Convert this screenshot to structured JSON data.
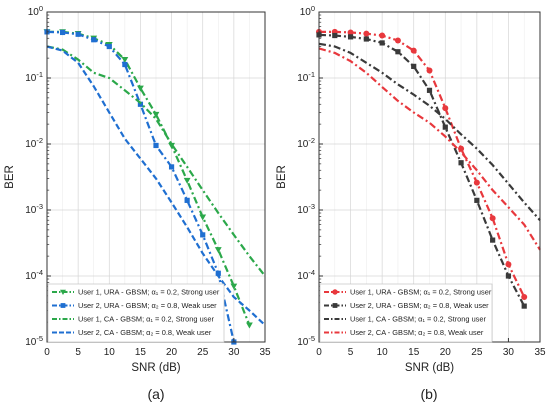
{
  "colors": {
    "green": "#2ba84a",
    "blue": "#1f6fd1",
    "red": "#e8383d",
    "dark": "#3a3a3a"
  },
  "chart_data": [
    {
      "type": "line",
      "panel_label": "(a)",
      "xlabel": "SNR (dB)",
      "ylabel": "BER",
      "x_scale": "linear",
      "y_scale": "log",
      "xlim": [
        0,
        35
      ],
      "ylim": [
        1e-05,
        1
      ],
      "x_ticks": [
        "0",
        "5",
        "10",
        "15",
        "20",
        "25",
        "30",
        "35"
      ],
      "y_ticks": [
        "10^-5",
        "10^-4",
        "10^-3",
        "10^-2",
        "10^-1",
        "10^0"
      ],
      "grid": true,
      "legend_position": "bottom-left",
      "series": [
        {
          "name": "User 1, URA - GBSM; α₁ = 0.2, Strong user",
          "color": "#2ba84a",
          "dash": "dashdot",
          "marker": "triangle-down",
          "x": [
            0,
            2.5,
            5,
            7.5,
            10,
            12.5,
            15,
            17.5,
            20,
            22.5,
            25,
            27.5,
            30,
            32.5,
            35
          ],
          "y": [
            0.5,
            0.5,
            0.47,
            0.4,
            0.32,
            0.19,
            0.07,
            0.028,
            0.0095,
            0.0028,
            0.00078,
            0.00025,
            7e-05,
            1.8e-05,
            null
          ]
        },
        {
          "name": "User 2, URA - GBSM; α₂ = 0.8, Weak user",
          "color": "#1f6fd1",
          "dash": "dashdot",
          "marker": "square",
          "x": [
            0,
            2.5,
            5,
            7.5,
            10,
            12.5,
            15,
            17.5,
            20,
            22.5,
            25,
            27.5,
            30,
            32.5
          ],
          "y": [
            0.5,
            0.49,
            0.46,
            0.38,
            0.3,
            0.16,
            0.04,
            0.0095,
            0.0045,
            0.0014,
            0.00042,
            0.00011,
            1e-05,
            null
          ]
        },
        {
          "name": "User 1, CA - GBSM; α₁ = 0.2, Strong user",
          "color": "#2ba84a",
          "dash": "dashdot",
          "marker": "none",
          "x": [
            0,
            2.5,
            5,
            7.5,
            10,
            12.5,
            15,
            17.5,
            20,
            22.5,
            25,
            27.5,
            30,
            32.5,
            35
          ],
          "y": [
            0.3,
            0.27,
            0.19,
            0.12,
            0.1,
            0.065,
            0.042,
            0.024,
            0.01,
            0.0045,
            0.002,
            0.0009,
            0.00042,
            0.0002,
            0.0001
          ]
        },
        {
          "name": "User 2, CA - GBSM; α₂ = 0.8, Weak user",
          "color": "#1f6fd1",
          "dash": "dash",
          "marker": "none",
          "x": [
            0,
            2.5,
            5,
            7.5,
            10,
            12.5,
            15,
            17.5,
            20,
            22.5,
            25,
            27.5,
            30,
            32.5,
            35
          ],
          "y": [
            0.3,
            0.26,
            0.17,
            0.075,
            0.03,
            0.012,
            0.006,
            0.003,
            0.0013,
            0.00055,
            0.00022,
            0.0001,
            4.8e-05,
            3e-05,
            1.8e-05
          ]
        }
      ]
    },
    {
      "type": "line",
      "panel_label": "(b)",
      "xlabel": "SNR (dB)",
      "ylabel": "BER",
      "x_scale": "linear",
      "y_scale": "log",
      "xlim": [
        0,
        35
      ],
      "ylim": [
        1e-05,
        1
      ],
      "x_ticks": [
        "0",
        "5",
        "10",
        "15",
        "20",
        "25",
        "30",
        "35"
      ],
      "y_ticks": [
        "10^-5",
        "10^-4",
        "10^-3",
        "10^-2",
        "10^-1",
        "10^0"
      ],
      "grid": true,
      "legend_position": "bottom-left",
      "series": [
        {
          "name": "User 1, URA - GBSM; α₁ = 0.2, Strong user",
          "color": "#e8383d",
          "dash": "dashdot",
          "marker": "circle",
          "x": [
            0,
            2.5,
            5,
            7.5,
            10,
            12.5,
            15,
            17.5,
            20,
            22.5,
            25,
            27.5,
            30,
            32.5
          ],
          "y": [
            0.5,
            0.5,
            0.49,
            0.47,
            0.44,
            0.37,
            0.26,
            0.13,
            0.035,
            0.0085,
            0.0026,
            0.00075,
            0.00015,
            4.8e-05
          ]
        },
        {
          "name": "User 2, URA - GBSM; α₂ = 0.8, Weak user",
          "color": "#3a3a3a",
          "dash": "dashdot",
          "marker": "square",
          "x": [
            0,
            2.5,
            5,
            7.5,
            10,
            12.5,
            15,
            17.5,
            20,
            22.5,
            25,
            27.5,
            30,
            32.5
          ],
          "y": [
            0.45,
            0.44,
            0.42,
            0.39,
            0.34,
            0.25,
            0.15,
            0.065,
            0.018,
            0.0052,
            0.0014,
            0.00035,
            0.0001,
            3.5e-05
          ]
        },
        {
          "name": "User 1, CA - GBSM; α₁ = 0.2, Strong user",
          "color": "#3a3a3a",
          "dash": "dashdot",
          "marker": "none",
          "x": [
            0,
            2.5,
            5,
            7.5,
            10,
            12.5,
            15,
            17.5,
            20,
            22.5,
            25,
            27.5,
            30,
            32.5,
            35
          ],
          "y": [
            0.33,
            0.3,
            0.24,
            0.17,
            0.12,
            0.08,
            0.056,
            0.038,
            0.024,
            0.014,
            0.0085,
            0.0048,
            0.0025,
            0.0013,
            0.0007
          ]
        },
        {
          "name": "User 2, CA - GBSM; α₂ = 0.8, Weak user",
          "color": "#e8383d",
          "dash": "dashdot",
          "marker": "none",
          "x": [
            0,
            2.5,
            5,
            7.5,
            10,
            12.5,
            15,
            17.5,
            20,
            22.5,
            25,
            27.5,
            30,
            32.5,
            35
          ],
          "y": [
            0.28,
            0.24,
            0.18,
            0.12,
            0.073,
            0.045,
            0.03,
            0.021,
            0.013,
            0.0075,
            0.004,
            0.002,
            0.0011,
            0.0006,
            0.00025
          ]
        }
      ]
    }
  ]
}
